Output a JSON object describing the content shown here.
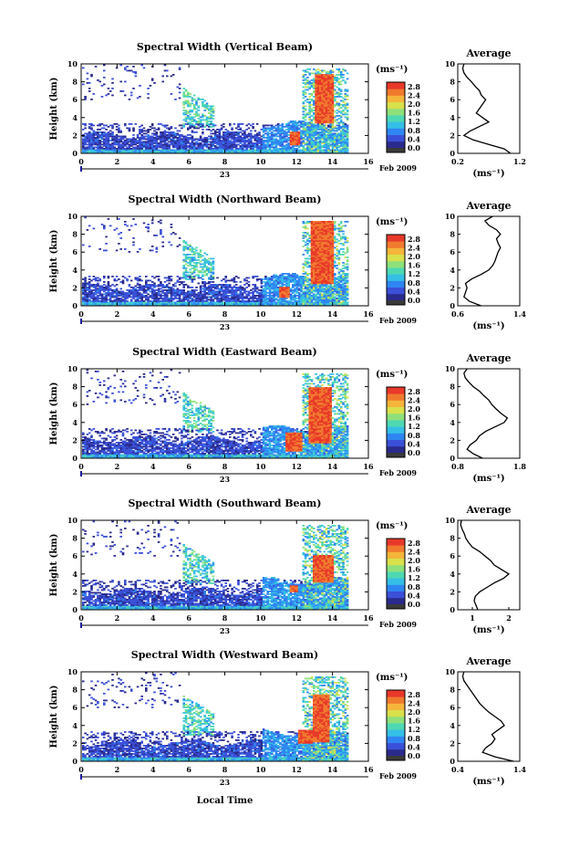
{
  "figure": {
    "xlabel": "Local Time",
    "date_day": "23",
    "date_label": "Feb 2009",
    "unit_label": "(ms⁻¹)",
    "ylabel": "Height (km)",
    "average_title": "Average"
  },
  "colors": {
    "colormap": [
      "#2a2a8c",
      "#3b50d8",
      "#2f86f2",
      "#35bfe6",
      "#4ed8b2",
      "#8fe07a",
      "#d8e04b",
      "#f5b53a",
      "#f07a2e",
      "#e8392a"
    ],
    "colorbar_bottom": "#3a3a3a"
  },
  "chart_data": [
    {
      "type": "heatmap",
      "title": "Spectral Width (Vertical Beam)",
      "x_ticks": [
        "0",
        "2",
        "4",
        "6",
        "8",
        "10",
        "12",
        "14",
        "16"
      ],
      "xlim": [
        0,
        16
      ],
      "y_ticks": [
        "0",
        "2",
        "4",
        "6",
        "8",
        "10"
      ],
      "ylim": [
        0,
        10
      ],
      "colorbar_ticks": [
        "0.0",
        "0.4",
        "0.8",
        "1.2",
        "1.6",
        "2.0",
        "2.4",
        "2.8"
      ],
      "clim": [
        0,
        3.0
      ],
      "average": {
        "x_ticks": [
          "0.2",
          "1.2"
        ],
        "xlim": [
          0.2,
          1.2
        ],
        "profile": [
          [
            0.0,
            1.05
          ],
          [
            0.5,
            0.95
          ],
          [
            1.0,
            0.7
          ],
          [
            1.5,
            0.45
          ],
          [
            2.0,
            0.3
          ],
          [
            2.5,
            0.4
          ],
          [
            3.0,
            0.55
          ],
          [
            3.5,
            0.7
          ],
          [
            4.0,
            0.6
          ],
          [
            4.5,
            0.5
          ],
          [
            5.0,
            0.55
          ],
          [
            5.5,
            0.6
          ],
          [
            6.0,
            0.65
          ],
          [
            6.5,
            0.58
          ],
          [
            7.0,
            0.55
          ],
          [
            7.5,
            0.48
          ],
          [
            8.0,
            0.42
          ],
          [
            8.5,
            0.35
          ],
          [
            9.0,
            0.3
          ],
          [
            9.5,
            0.28
          ],
          [
            10.0,
            0.3
          ]
        ]
      }
    },
    {
      "type": "heatmap",
      "title": "Spectral Width (Northward Beam)",
      "x_ticks": [
        "0",
        "2",
        "4",
        "6",
        "8",
        "10",
        "12",
        "14",
        "16"
      ],
      "xlim": [
        0,
        16
      ],
      "y_ticks": [
        "0",
        "2",
        "4",
        "6",
        "8",
        "10"
      ],
      "ylim": [
        0,
        10
      ],
      "colorbar_ticks": [
        "0.0",
        "0.4",
        "0.8",
        "1.2",
        "1.6",
        "2.0",
        "2.4",
        "2.8"
      ],
      "clim": [
        0,
        3.0
      ],
      "average": {
        "x_ticks": [
          "0.6",
          "1.4"
        ],
        "xlim": [
          0.6,
          1.4
        ],
        "profile": [
          [
            0.0,
            0.9
          ],
          [
            0.5,
            0.75
          ],
          [
            1.0,
            0.68
          ],
          [
            1.5,
            0.7
          ],
          [
            2.0,
            0.72
          ],
          [
            2.5,
            0.7
          ],
          [
            3.0,
            0.78
          ],
          [
            3.5,
            0.9
          ],
          [
            4.0,
            1.0
          ],
          [
            4.5,
            1.05
          ],
          [
            5.0,
            1.08
          ],
          [
            5.5,
            1.1
          ],
          [
            6.0,
            1.12
          ],
          [
            6.5,
            1.15
          ],
          [
            7.0,
            1.12
          ],
          [
            7.5,
            1.1
          ],
          [
            8.0,
            1.15
          ],
          [
            8.5,
            1.1
          ],
          [
            9.0,
            1.0
          ],
          [
            9.5,
            0.95
          ],
          [
            10.0,
            1.05
          ]
        ]
      }
    },
    {
      "type": "heatmap",
      "title": "Spectral Width (Eastward Beam)",
      "x_ticks": [
        "0",
        "2",
        "4",
        "6",
        "8",
        "10",
        "12",
        "14",
        "16"
      ],
      "xlim": [
        0,
        16
      ],
      "y_ticks": [
        "0",
        "2",
        "4",
        "6",
        "8",
        "10"
      ],
      "ylim": [
        0,
        10
      ],
      "colorbar_ticks": [
        "0.0",
        "0.4",
        "0.8",
        "1.2",
        "1.6",
        "2.0",
        "2.4",
        "2.8"
      ],
      "clim": [
        0,
        3.0
      ],
      "average": {
        "x_ticks": [
          "0.8",
          "1.8"
        ],
        "xlim": [
          0.8,
          1.8
        ],
        "profile": [
          [
            0.0,
            1.2
          ],
          [
            0.5,
            1.05
          ],
          [
            1.0,
            0.95
          ],
          [
            1.5,
            1.0
          ],
          [
            2.0,
            1.1
          ],
          [
            2.5,
            1.15
          ],
          [
            3.0,
            1.25
          ],
          [
            3.5,
            1.4
          ],
          [
            4.0,
            1.55
          ],
          [
            4.5,
            1.6
          ],
          [
            5.0,
            1.5
          ],
          [
            5.5,
            1.42
          ],
          [
            6.0,
            1.35
          ],
          [
            6.5,
            1.3
          ],
          [
            7.0,
            1.22
          ],
          [
            7.5,
            1.15
          ],
          [
            8.0,
            1.05
          ],
          [
            8.5,
            0.98
          ],
          [
            9.0,
            0.92
          ],
          [
            9.5,
            0.9
          ],
          [
            10.0,
            0.95
          ]
        ]
      }
    },
    {
      "type": "heatmap",
      "title": "Spectral Width (Southward Beam)",
      "x_ticks": [
        "0",
        "2",
        "4",
        "6",
        "8",
        "10",
        "12",
        "14",
        "16"
      ],
      "xlim": [
        0,
        16
      ],
      "y_ticks": [
        "0",
        "2",
        "4",
        "6",
        "8",
        "10"
      ],
      "ylim": [
        0,
        10
      ],
      "colorbar_ticks": [
        "0.0",
        "0.4",
        "0.8",
        "1.2",
        "1.6",
        "2.0",
        "2.4",
        "2.8"
      ],
      "clim": [
        0,
        3.0
      ],
      "average": {
        "x_ticks": [
          "1",
          "2"
        ],
        "xlim": [
          0.6,
          2.3
        ],
        "profile": [
          [
            0.0,
            1.15
          ],
          [
            0.5,
            1.1
          ],
          [
            1.0,
            1.05
          ],
          [
            1.5,
            1.08
          ],
          [
            2.0,
            1.2
          ],
          [
            2.5,
            1.4
          ],
          [
            3.0,
            1.6
          ],
          [
            3.5,
            1.85
          ],
          [
            4.0,
            2.0
          ],
          [
            4.5,
            1.8
          ],
          [
            5.0,
            1.6
          ],
          [
            5.5,
            1.5
          ],
          [
            6.0,
            1.35
          ],
          [
            6.5,
            1.2
          ],
          [
            7.0,
            1.0
          ],
          [
            7.5,
            0.9
          ],
          [
            8.0,
            0.82
          ],
          [
            8.5,
            0.78
          ],
          [
            9.0,
            0.72
          ],
          [
            9.5,
            0.68
          ],
          [
            10.0,
            0.7
          ]
        ]
      }
    },
    {
      "type": "heatmap",
      "title": "Spectral Width (Westward Beam)",
      "x_ticks": [
        "0",
        "2",
        "4",
        "6",
        "8",
        "10",
        "12",
        "14",
        "16"
      ],
      "xlim": [
        0,
        16
      ],
      "y_ticks": [
        "0",
        "2",
        "4",
        "6",
        "8",
        "10"
      ],
      "ylim": [
        0,
        10
      ],
      "colorbar_ticks": [
        "0.0",
        "0.4",
        "0.8",
        "1.2",
        "1.6",
        "2.0",
        "2.4",
        "2.8"
      ],
      "clim": [
        0,
        3.0
      ],
      "average": {
        "x_ticks": [
          "0.4",
          "1.4"
        ],
        "xlim": [
          0.4,
          1.4
        ],
        "profile": [
          [
            0.0,
            1.3
          ],
          [
            0.5,
            1.0
          ],
          [
            1.0,
            0.8
          ],
          [
            1.5,
            0.85
          ],
          [
            2.0,
            0.95
          ],
          [
            2.5,
            1.0
          ],
          [
            3.0,
            0.95
          ],
          [
            3.5,
            1.05
          ],
          [
            4.0,
            1.15
          ],
          [
            4.5,
            1.1
          ],
          [
            5.0,
            1.0
          ],
          [
            5.5,
            0.9
          ],
          [
            6.0,
            0.82
          ],
          [
            6.5,
            0.75
          ],
          [
            7.0,
            0.7
          ],
          [
            7.5,
            0.65
          ],
          [
            8.0,
            0.6
          ],
          [
            8.5,
            0.55
          ],
          [
            9.0,
            0.5
          ],
          [
            9.5,
            0.48
          ],
          [
            10.0,
            0.5
          ]
        ]
      }
    }
  ]
}
